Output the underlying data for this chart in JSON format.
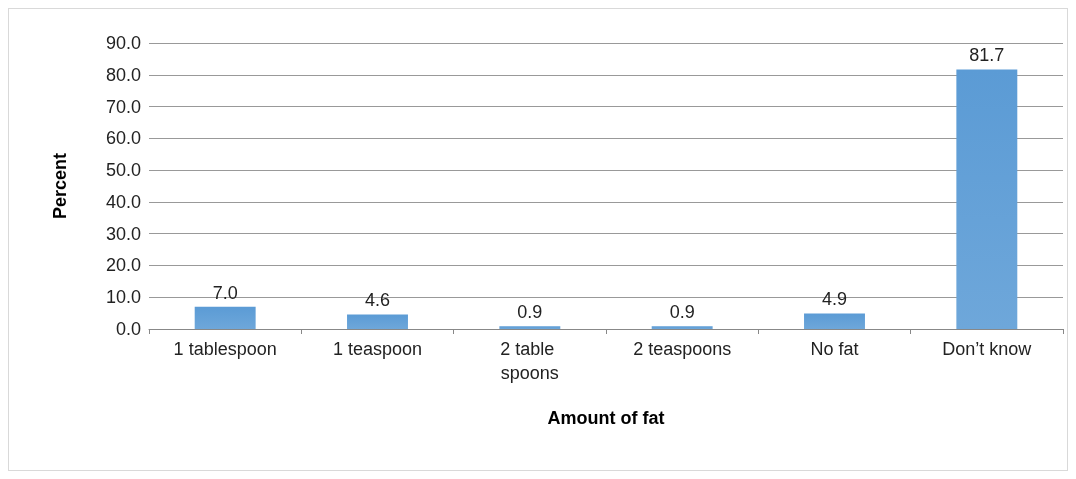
{
  "chart_data": {
    "type": "bar",
    "xlabel": "Amount of fat",
    "ylabel": "Percent",
    "categories": [
      "1 tablespoon",
      "1 teaspoon",
      "2 table spoons",
      "2 teaspoons",
      "No fat",
      "Don’t know"
    ],
    "values": [
      7.0,
      4.6,
      0.9,
      0.9,
      4.9,
      81.7
    ],
    "value_labels": [
      "7.0",
      "4.6",
      "0.9",
      "0.9",
      "4.9",
      "81.7"
    ],
    "color": "#5b9bd5",
    "ylim": [
      0,
      90
    ],
    "yticks": [
      {
        "value": 0,
        "label": "0.0"
      },
      {
        "value": 10,
        "label": "10.0"
      },
      {
        "value": 20,
        "label": "20.0"
      },
      {
        "value": 30,
        "label": "30.0"
      },
      {
        "value": 40,
        "label": "40.0"
      },
      {
        "value": 50,
        "label": "50.0"
      },
      {
        "value": 60,
        "label": "60.0"
      },
      {
        "value": 70,
        "label": "70.0"
      },
      {
        "value": 80,
        "label": "80.0"
      },
      {
        "value": 90,
        "label": "90.0"
      }
    ],
    "grid": "y"
  }
}
